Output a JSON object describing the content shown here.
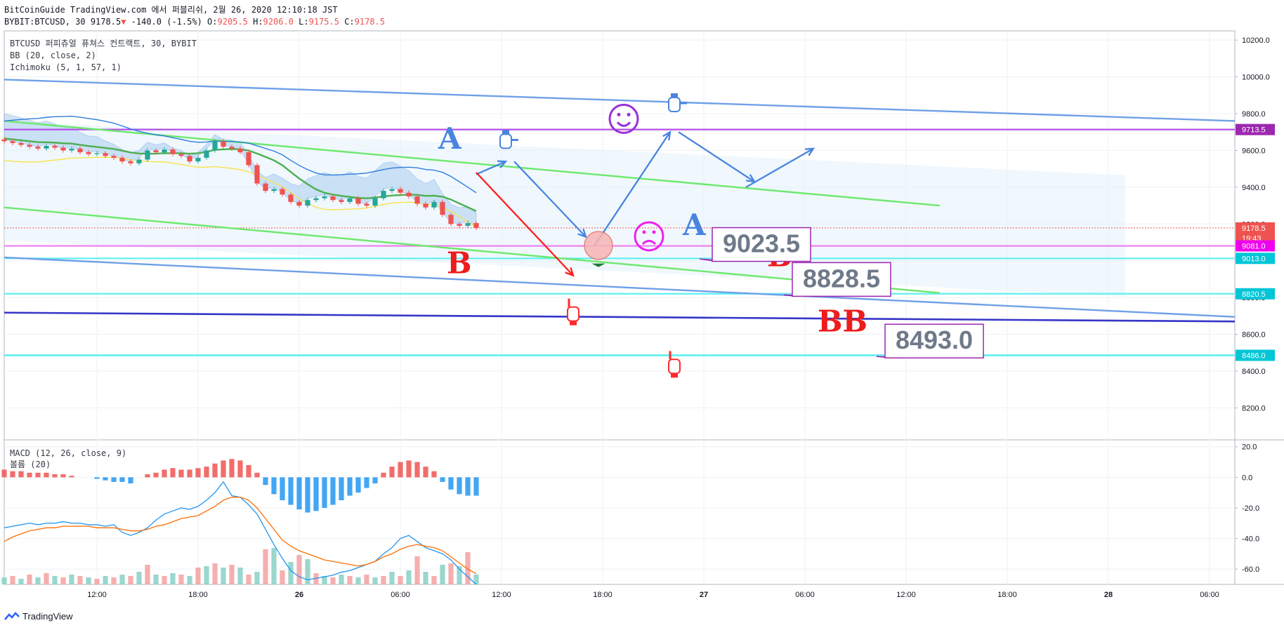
{
  "header": {
    "line1": "BitCoinGuide TradingView.com 에서 퍼블리쉬, 2월 26, 2020 12:10:18 JST",
    "symbol": "BYBIT:BTCUSD, 30",
    "last": "9178.5",
    "change": "-140.0 (-1.5%)",
    "o_label": "O:",
    "o": "9205.5",
    "h_label": "H:",
    "h": "9206.0",
    "l_label": "L:",
    "l": "9175.5",
    "c_label": "C:",
    "c": "9178.5"
  },
  "legend": {
    "title": "BTCUSD 퍼피츄얼 퓨쳐스 컨트랙트, 30, BYBIT",
    "bb": "BB (20, close, 2)",
    "ichimoku": "Ichimoku (5, 1, 57, 1)",
    "macd": "MACD (12, 26, close, 9)",
    "volume": "볼륨 (20)"
  },
  "footer": {
    "brand": "TradingView"
  },
  "colors": {
    "up": "#26a69a",
    "down": "#ef5350",
    "channel": "#6fa0e8",
    "green_line": "#6ee86e",
    "bb_mid": "#4caf50",
    "bb_upper": "#2f7ddb",
    "bb_lower": "#f9e34d",
    "cloud": "#aacdee",
    "purple_level": "#b350e8",
    "magenta_level": "#ee82ee",
    "cyan_level": "#5ff0f0",
    "navy": "#3535c8",
    "arrow_blue": "#4a84de",
    "arrow_red": "#ff1f1f"
  },
  "chart_data": [
    {
      "type": "candlestick",
      "title": "BTCUSD 퍼피츄얼 퓨쳐스 컨트랙트, 30, BYBIT",
      "ylim": [
        8030,
        10250
      ],
      "y_ticks": [
        "10200.0",
        "10000.0",
        "9800.0",
        "9600.0",
        "9400.0",
        "9200.0",
        "9000.0",
        "8800.0",
        "8600.0",
        "8400.0",
        "8200.0"
      ],
      "y_tick_values": [
        10200,
        10000,
        9800,
        9600,
        9400,
        9200,
        9000,
        8800,
        8600,
        8400,
        8200
      ],
      "x_ticks": [
        "12:00",
        "18:00",
        "26",
        "06:00",
        "12:00",
        "18:00",
        "27",
        "06:00",
        "12:00",
        "18:00",
        "28",
        "06:00"
      ],
      "x_tick_bars": [
        11,
        23,
        35,
        47,
        59,
        71,
        83,
        95,
        107,
        119,
        131,
        143
      ],
      "bar_range": [
        0,
        146
      ],
      "closes": [
        9650,
        9640,
        9630,
        9620,
        9610,
        9625,
        9615,
        9600,
        9610,
        9590,
        9580,
        9585,
        9570,
        9560,
        9540,
        9530,
        9550,
        9600,
        9590,
        9605,
        9580,
        9570,
        9540,
        9560,
        9600,
        9650,
        9620,
        9610,
        9590,
        9520,
        9420,
        9380,
        9390,
        9360,
        9320,
        9300,
        9330,
        9340,
        9350,
        9330,
        9320,
        9340,
        9310,
        9300,
        9340,
        9380,
        9390,
        9370,
        9350,
        9310,
        9290,
        9320,
        9250,
        9200,
        9190,
        9205,
        9178.5
      ],
      "price_labels": [
        {
          "label": "9713.5",
          "value": 9713.5,
          "color": "#9c27b0"
        },
        {
          "label": "9178.5",
          "value": 9178.5,
          "color": "#ef5350"
        },
        {
          "label": "19:43",
          "value": 9123,
          "color": "#ef5350"
        },
        {
          "label": "9081.0",
          "value": 9081,
          "color": "#ee00ee"
        },
        {
          "label": "9013.0",
          "value": 9013,
          "color": "#00c6d6"
        },
        {
          "label": "8820.5",
          "value": 8820.5,
          "color": "#00c6d6"
        },
        {
          "label": "8486.0",
          "value": 8486,
          "color": "#00c6d6"
        }
      ],
      "annotations": {
        "boxes": [
          {
            "text": "9023.5",
            "value": 9023.5
          },
          {
            "text": "8828.5",
            "value": 8828.5
          },
          {
            "text": "8493.0",
            "value": 8493.0
          }
        ],
        "letters": [
          "A",
          "B",
          "A",
          "B",
          "BB"
        ]
      }
    },
    {
      "type": "macd",
      "title": "MACD (12, 26, close, 9)",
      "ylim": [
        -70,
        24
      ],
      "y_ticks": [
        "20.0",
        "0.0",
        "-20.0",
        "-40.0",
        "-60.0"
      ],
      "y_tick_values": [
        20,
        0,
        -20,
        -40,
        -60
      ],
      "histogram": [
        5,
        4,
        4,
        3,
        3,
        3,
        2,
        2,
        1,
        0,
        0,
        -1,
        -2,
        -3,
        -3,
        -4,
        0,
        2,
        3,
        5,
        6,
        5,
        5,
        6,
        7,
        9,
        11,
        12,
        11,
        8,
        3,
        -5,
        -11,
        -15,
        -18,
        -21,
        -23,
        -22,
        -20,
        -18,
        -15,
        -12,
        -10,
        -7,
        -4,
        3,
        7,
        10,
        11,
        10,
        7,
        4,
        -3,
        -8,
        -11,
        -12,
        -12
      ],
      "macd": [
        -33,
        -32,
        -31,
        -30,
        -31,
        -30,
        -30,
        -29,
        -30,
        -30,
        -31,
        -31,
        -32,
        -31,
        -36,
        -38,
        -36,
        -33,
        -28,
        -24,
        -22,
        -20,
        -21,
        -19,
        -15,
        -10,
        -3,
        -12,
        -13,
        -18,
        -24,
        -34,
        -44,
        -53,
        -61,
        -65,
        -67,
        -66,
        -65,
        -64,
        -62,
        -61,
        -59,
        -57,
        -55,
        -50,
        -46,
        -40,
        -38,
        -42,
        -46,
        -48,
        -50,
        -54,
        -60,
        -65,
        -70
      ],
      "signal": [
        -42,
        -39,
        -37,
        -35,
        -34,
        -33,
        -33,
        -32,
        -32,
        -32,
        -32,
        -33,
        -33,
        -33,
        -34,
        -35,
        -35,
        -34,
        -32,
        -31,
        -29,
        -27,
        -26,
        -25,
        -22,
        -19,
        -15,
        -13,
        -13,
        -15,
        -20,
        -27,
        -34,
        -41,
        -45,
        -48,
        -50,
        -52,
        -54,
        -55,
        -56,
        -57,
        -58,
        -57,
        -55,
        -52,
        -50,
        -47,
        -45,
        -44,
        -45,
        -46,
        -48,
        -52,
        -56,
        -60,
        -63
      ],
      "volume": [
        5,
        6,
        4,
        7,
        5,
        8,
        6,
        5,
        7,
        6,
        5,
        4,
        6,
        5,
        7,
        6,
        9,
        14,
        7,
        6,
        8,
        7,
        6,
        12,
        13,
        15,
        12,
        14,
        12,
        7,
        9,
        25,
        26,
        10,
        16,
        21,
        18,
        8,
        6,
        5,
        7,
        6,
        5,
        7,
        5,
        6,
        9,
        6,
        10,
        20,
        9,
        6,
        14,
        15,
        13,
        23,
        7
      ]
    }
  ]
}
